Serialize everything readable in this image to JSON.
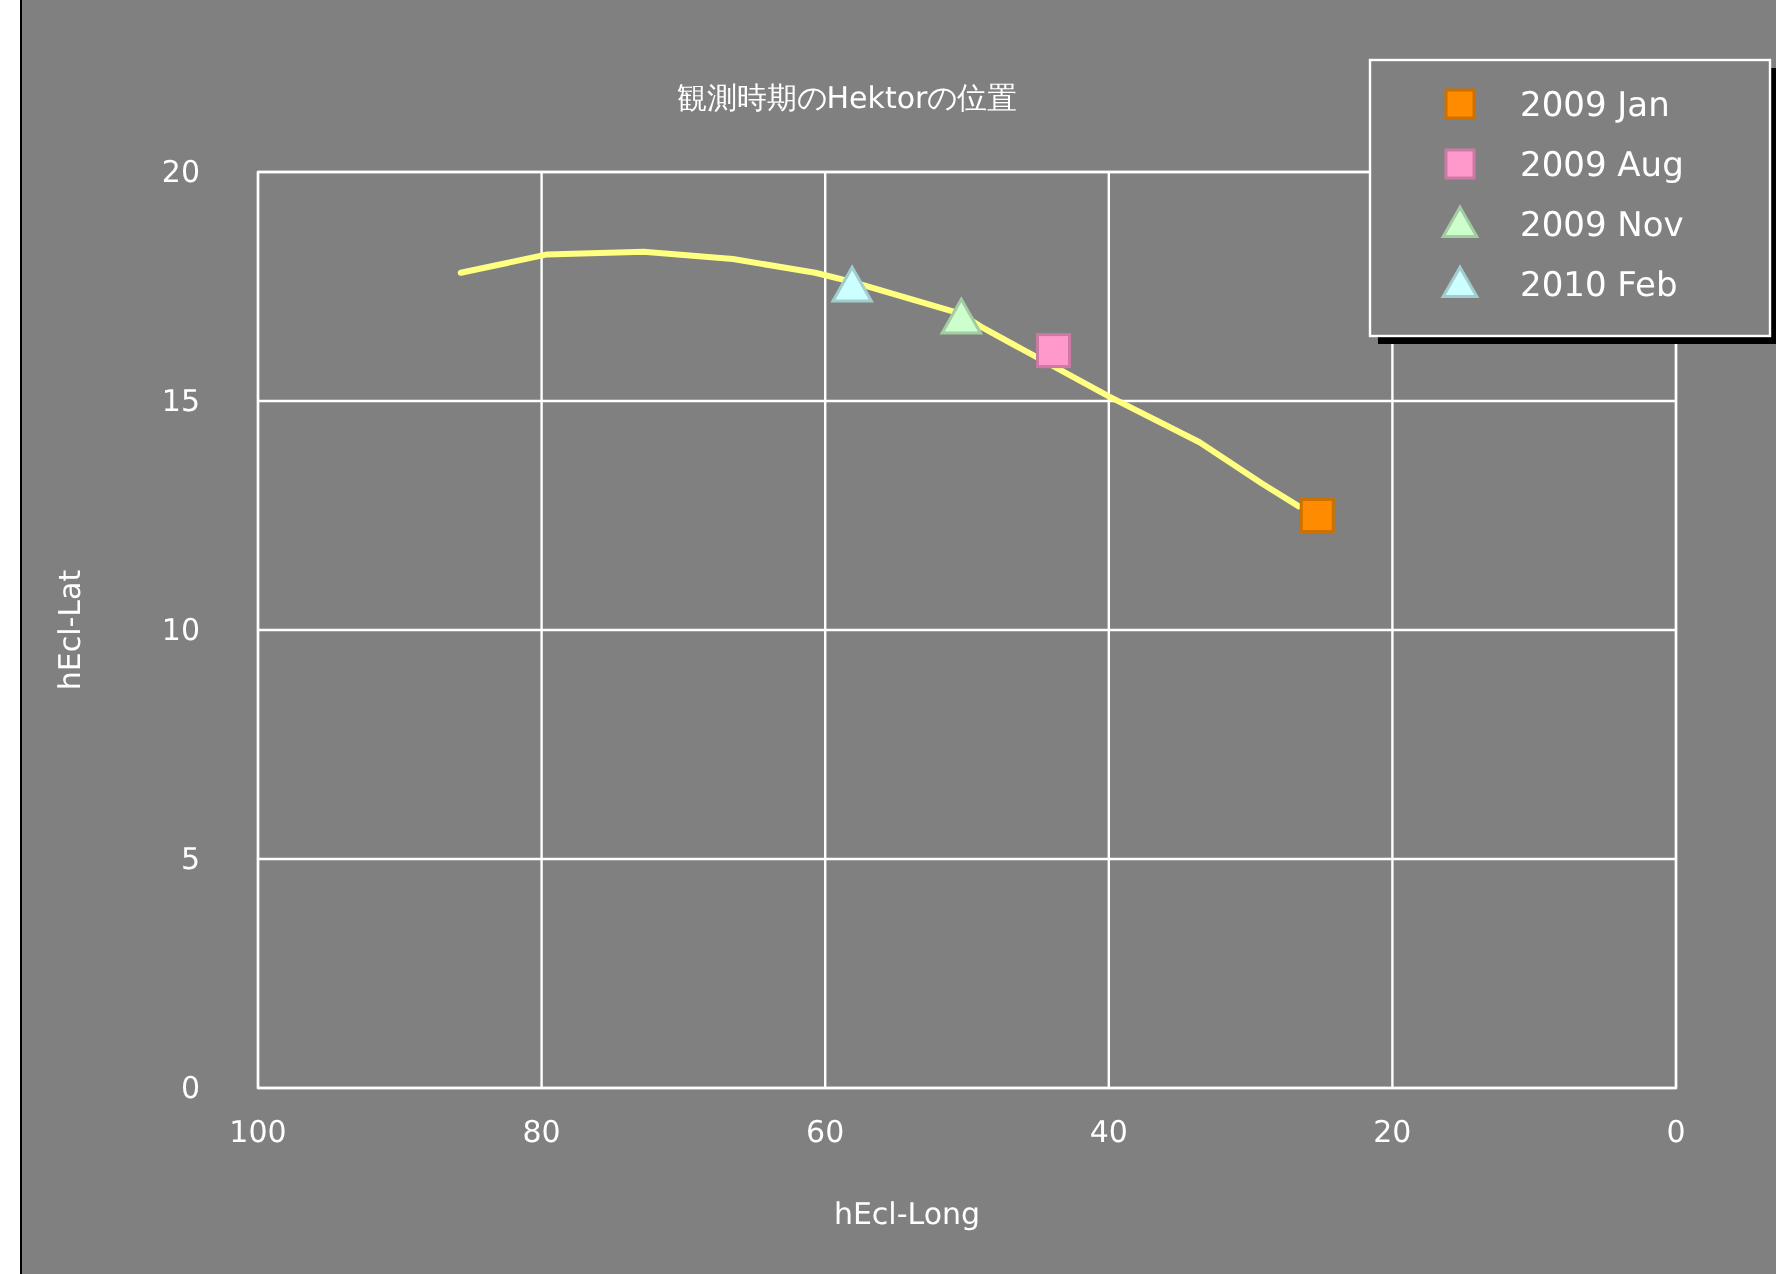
{
  "chart_data": {
    "type": "scatter",
    "title": "観測時期のHektorの位置",
    "xlabel": "hEcl-Long",
    "ylabel": "hEcl-Lat",
    "xlim": [
      100,
      0
    ],
    "xticks": [
      100,
      80,
      60,
      40,
      20,
      0
    ],
    "ylim": [
      0,
      20
    ],
    "yticks": [
      0,
      5,
      10,
      15,
      20
    ],
    "grid": true,
    "legend": "top right",
    "series": [
      {
        "type": "line",
        "color": "#ffff80",
        "marker": "none",
        "x": [
          85.7,
          79.6,
          72.8,
          66.5,
          60.7,
          58.1,
          50.4,
          48.9,
          40,
          33.6,
          29.2,
          26.6
        ],
        "values": [
          17.8,
          18.2,
          18.26,
          18.1,
          17.8,
          17.6,
          16.9,
          16.6,
          15.1,
          14.1,
          13.2,
          12.7
        ]
      },
      {
        "name": "2009 Jan",
        "marker": "square",
        "color": "#ff8c00",
        "x": [
          25.3
        ],
        "values": [
          12.5
        ]
      },
      {
        "name": "2009 Aug",
        "marker": "square",
        "color": "#ff99cc",
        "x": [
          43.9
        ],
        "values": [
          16.1
        ]
      },
      {
        "name": "2009 Nov",
        "marker": "triangle",
        "color": "#ccffcc",
        "x": [
          50.4
        ],
        "values": [
          16.8
        ]
      },
      {
        "name": "2010 Feb",
        "marker": "triangle",
        "color": "#ccffff",
        "x": [
          58.1
        ],
        "values": [
          17.5
        ]
      }
    ]
  }
}
